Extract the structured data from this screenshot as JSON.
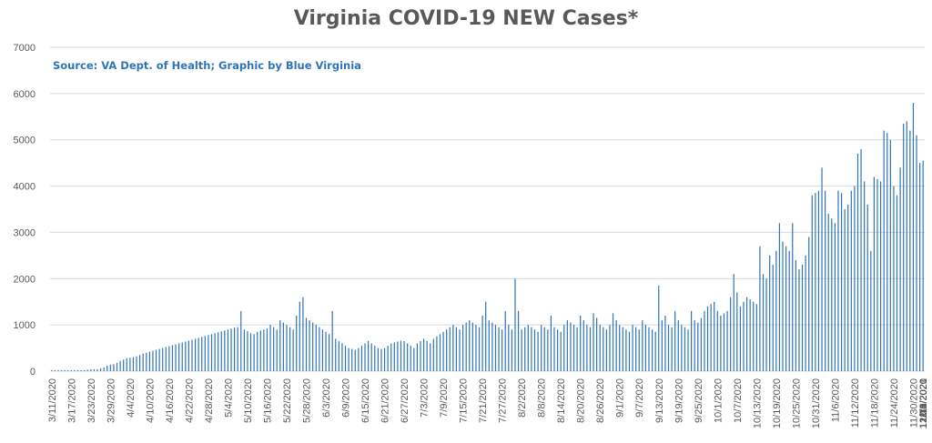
{
  "title": "Virginia COVID-19 NEW Cases*",
  "source": "Source: VA Dept. of Health; Graphic by Blue Virginia",
  "colors": {
    "bar": "#2e75b6",
    "grid": "#d9d9d9",
    "text": "#595959"
  },
  "chart_data": {
    "type": "bar",
    "title": "Virginia COVID-19 NEW Cases*",
    "xlabel": "",
    "ylabel": "",
    "ylim": [
      0,
      7000
    ],
    "yticks": [
      0,
      1000,
      2000,
      3000,
      4000,
      5000,
      6000,
      7000
    ],
    "grid": true,
    "legend": "none",
    "x_start": "2020-03-11",
    "x_end": "2021-01-11",
    "xtick_labels": [
      "3/11/2020",
      "3/17/2020",
      "3/23/2020",
      "3/29/2020",
      "4/4/2020",
      "4/10/2020",
      "4/16/2020",
      "4/22/2020",
      "4/28/2020",
      "5/4/2020",
      "5/10/2020",
      "5/16/2020",
      "5/22/2020",
      "5/28/2020",
      "6/3/2020",
      "6/9/2020",
      "6/15/2020",
      "6/21/2020",
      "6/27/2020",
      "7/3/2020",
      "7/9/2020",
      "7/15/2020",
      "7/21/2020",
      "7/27/2020",
      "8/2/2020",
      "8/8/2020",
      "8/14/2020",
      "8/20/2020",
      "8/26/2020",
      "9/1/2020",
      "9/7/2020",
      "9/13/2020",
      "9/19/2020",
      "9/25/2020",
      "10/1/2020",
      "10/7/2020",
      "10/13/2020",
      "10/19/2020",
      "10/25/2020",
      "10/31/2020",
      "11/6/2020",
      "11/12/2020",
      "11/18/2020",
      "11/24/2020",
      "11/30/2020",
      "12/6/2020",
      "12/12/2020",
      "12/18/2020",
      "12/24/2020",
      "12/30/2020",
      "1/5/2021",
      "1/11/2021"
    ],
    "values": [
      20,
      20,
      20,
      20,
      20,
      20,
      20,
      20,
      20,
      20,
      20,
      30,
      40,
      40,
      40,
      60,
      80,
      120,
      140,
      150,
      180,
      220,
      250,
      280,
      290,
      300,
      320,
      350,
      380,
      400,
      420,
      440,
      460,
      480,
      500,
      520,
      540,
      560,
      580,
      600,
      620,
      640,
      660,
      680,
      700,
      720,
      740,
      760,
      780,
      800,
      820,
      840,
      860,
      880,
      900,
      920,
      940,
      950,
      1300,
      900,
      860,
      820,
      800,
      850,
      880,
      900,
      920,
      1000,
      950,
      900,
      1100,
      1050,
      1000,
      950,
      900,
      1200,
      1500,
      1600,
      1150,
      1100,
      1050,
      1000,
      950,
      900,
      850,
      800,
      1300,
      700,
      650,
      600,
      550,
      500,
      480,
      460,
      500,
      550,
      600,
      650,
      600,
      550,
      500,
      480,
      500,
      550,
      600,
      620,
      640,
      660,
      650,
      600,
      550,
      500,
      600,
      650,
      700,
      650,
      600,
      700,
      750,
      800,
      850,
      900,
      950,
      1000,
      950,
      900,
      1000,
      1050,
      1100,
      1050,
      1000,
      950,
      1200,
      1500,
      1100,
      1050,
      1000,
      950,
      900,
      1300,
      1000,
      900,
      2000,
      1300,
      900,
      950,
      1000,
      950,
      900,
      850,
      1000,
      950,
      900,
      1200,
      950,
      900,
      850,
      1000,
      1100,
      1050,
      1000,
      950,
      1200,
      1100,
      1000,
      950,
      1250,
      1150,
      1000,
      950,
      900,
      1000,
      1250,
      1100,
      1000,
      950,
      900,
      850,
      1000,
      950,
      900,
      1100,
      1000,
      950,
      900,
      850,
      1850,
      1100,
      1200,
      1000,
      950,
      1300,
      1100,
      1000,
      950,
      900,
      1300,
      1100,
      1050,
      1150,
      1300,
      1400,
      1450,
      1500,
      1300,
      1200,
      1250,
      1300,
      1600,
      2100,
      1700,
      1400,
      1500,
      1600,
      1550,
      1500,
      1450,
      2700,
      2100,
      2000,
      2500,
      2300,
      2600,
      3200,
      2800,
      2700,
      2600,
      3200,
      2400,
      2200,
      2300,
      2500,
      2900,
      3800,
      3850,
      3900,
      4400,
      3900,
      3400,
      3300,
      3200,
      3900,
      3850,
      3500,
      3600,
      3900,
      4000,
      4700,
      4800,
      4100,
      3600,
      2600,
      4200,
      4150,
      4100,
      5200,
      5150,
      5000,
      4000,
      3800,
      4400,
      5350,
      5400,
      5200,
      5800,
      5100,
      4500,
      4550
    ]
  }
}
